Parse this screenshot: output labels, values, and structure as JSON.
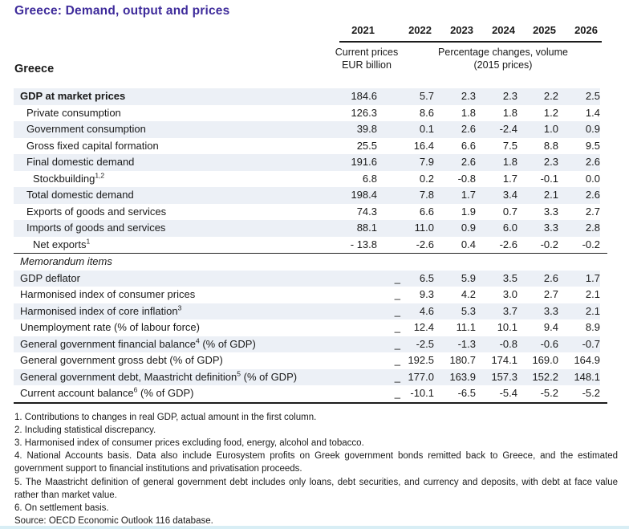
{
  "title": "Greece: Demand, output and prices",
  "colors": {
    "title_text": "#3e2b9b",
    "row_shade": "#ecf0f6",
    "rule": "#1c1c1c",
    "bottom_strip": "#d8eef5"
  },
  "table": {
    "country_label": "Greece",
    "years": [
      "2021",
      "2022",
      "2023",
      "2024",
      "2025",
      "2026"
    ],
    "col1_header_line1": "Current prices",
    "col1_header_line2": "EUR billion",
    "cols_header_line1": "Percentage changes, volume",
    "cols_header_line2": "(2015 prices)",
    "rows": [
      {
        "label": "GDP at market prices",
        "sup": "",
        "suffix": "",
        "indent": 0,
        "bold": true,
        "values": [
          "184.6",
          "5.7",
          "2.3",
          "2.3",
          "2.2",
          "2.5"
        ]
      },
      {
        "label": "Private consumption",
        "sup": "",
        "suffix": "",
        "indent": 1,
        "bold": false,
        "values": [
          "126.3",
          "8.6",
          "1.8",
          "1.8",
          "1.2",
          "1.4"
        ]
      },
      {
        "label": "Government consumption",
        "sup": "",
        "suffix": "",
        "indent": 1,
        "bold": false,
        "values": [
          "39.8",
          "0.1",
          "2.6",
          "-2.4",
          "1.0",
          "0.9"
        ]
      },
      {
        "label": "Gross fixed capital formation",
        "sup": "",
        "suffix": "",
        "indent": 1,
        "bold": false,
        "values": [
          "25.5",
          "16.4",
          "6.6",
          "7.5",
          "8.8",
          "9.5"
        ]
      },
      {
        "label": "Final domestic demand",
        "sup": "",
        "suffix": "",
        "indent": 1,
        "bold": false,
        "values": [
          "191.6",
          "7.9",
          "2.6",
          "1.8",
          "2.3",
          "2.6"
        ]
      },
      {
        "label": "Stockbuilding",
        "sup": "1,2",
        "suffix": "",
        "indent": 2,
        "bold": false,
        "values": [
          "6.8",
          "0.2",
          "-0.8",
          "1.7",
          "-0.1",
          "0.0"
        ]
      },
      {
        "label": "Total domestic demand",
        "sup": "",
        "suffix": "",
        "indent": 1,
        "bold": false,
        "values": [
          "198.4",
          "7.8",
          "1.7",
          "3.4",
          "2.1",
          "2.6"
        ]
      },
      {
        "label": "Exports of goods and services",
        "sup": "",
        "suffix": "",
        "indent": 1,
        "bold": false,
        "values": [
          "74.3",
          "6.6",
          "1.9",
          "0.7",
          "3.3",
          "2.7"
        ]
      },
      {
        "label": "Imports of goods and services",
        "sup": "",
        "suffix": "",
        "indent": 1,
        "bold": false,
        "values": [
          "88.1",
          "11.0",
          "0.9",
          "6.0",
          "3.3",
          "2.8"
        ]
      },
      {
        "label": "Net exports",
        "sup": "1",
        "suffix": "",
        "indent": 2,
        "bold": false,
        "values": [
          "- 13.8",
          "-2.6",
          "0.4",
          "-2.6",
          "-0.2",
          "-0.2"
        ]
      }
    ],
    "memo_label": "Memorandum items",
    "memo_rows": [
      {
        "label": "GDP deflator",
        "sup": "",
        "suffix": "",
        "indent": 0,
        "bold": false,
        "values": [
          "_",
          "6.5",
          "5.9",
          "3.5",
          "2.6",
          "1.7"
        ]
      },
      {
        "label": "Harmonised index of consumer prices",
        "sup": "",
        "suffix": "",
        "indent": 0,
        "bold": false,
        "values": [
          "_",
          "9.3",
          "4.2",
          "3.0",
          "2.7",
          "2.1"
        ]
      },
      {
        "label": "Harmonised index of core inflation",
        "sup": "3",
        "suffix": "",
        "indent": 0,
        "bold": false,
        "values": [
          "_",
          "4.6",
          "5.3",
          "3.7",
          "3.3",
          "2.1"
        ]
      },
      {
        "label": "Unemployment rate (% of labour force)",
        "sup": "",
        "suffix": "",
        "indent": 0,
        "bold": false,
        "values": [
          "_",
          "12.4",
          "11.1",
          "10.1",
          "9.4",
          "8.9"
        ]
      },
      {
        "label": "General government financial balance",
        "sup": "4",
        "suffix": " (% of GDP)",
        "indent": 0,
        "bold": false,
        "values": [
          "_",
          "-2.5",
          "-1.3",
          "-0.8",
          "-0.6",
          "-0.7"
        ]
      },
      {
        "label": "General government gross debt (% of GDP)",
        "sup": "",
        "suffix": "",
        "indent": 0,
        "bold": false,
        "values": [
          "_",
          "192.5",
          "180.7",
          "174.1",
          "169.0",
          "164.9"
        ]
      },
      {
        "label": "General government debt, Maastricht definition",
        "sup": "5",
        "suffix": " (% of GDP)",
        "indent": 0,
        "bold": false,
        "values": [
          "_",
          "177.0",
          "163.9",
          "157.3",
          "152.2",
          "148.1"
        ]
      },
      {
        "label": "Current account balance",
        "sup": "6",
        "suffix": " (% of GDP)",
        "indent": 0,
        "bold": false,
        "values": [
          "_",
          "-10.1",
          "-6.5",
          "-5.4",
          "-5.2",
          "-5.2"
        ]
      }
    ]
  },
  "footnotes": [
    "1. Contributions to changes in real GDP, actual amount in the first column.",
    "2. Including statistical discrepancy.",
    "3. Harmonised index of consumer prices excluding food, energy, alcohol and tobacco.",
    "4. National Accounts basis. Data also include Eurosystem profits on Greek government bonds remitted back to Greece, and the estimated government support to financial institutions and privatisation proceeds.",
    "5. The Maastricht definition of general government debt includes only loans, debt securities, and currency and deposits, with debt at face value rather than market value.",
    "6. On settlement basis."
  ],
  "source": "Source: OECD Economic Outlook 116 database."
}
